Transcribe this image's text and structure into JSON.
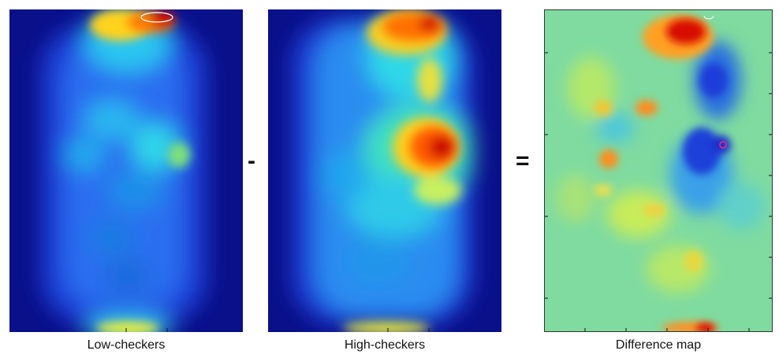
{
  "panels": [
    {
      "caption": "Low-checkers"
    },
    {
      "caption": "High-checkers"
    },
    {
      "caption": "Difference map"
    }
  ],
  "operators": {
    "minus": "-",
    "equals": "="
  },
  "colors": {
    "colormap": "jet",
    "deep_blue": "#0a0f8a",
    "neutral_green": "#7fdba0",
    "hot_red": "#d40000"
  }
}
